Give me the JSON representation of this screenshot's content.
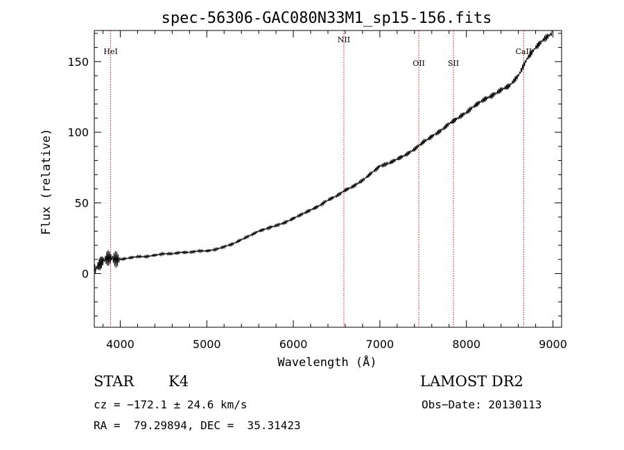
{
  "chart_data": {
    "type": "line",
    "title": "spec-56306-GAC080N33M1_sp15-156.fits",
    "xlabel": "Wavelength (Å)",
    "ylabel": "Flux (relative)",
    "xlim": [
      3700,
      9100
    ],
    "ylim": [
      -38,
      172
    ],
    "x_ticks": [
      4000,
      5000,
      6000,
      7000,
      8000,
      9000
    ],
    "y_ticks": [
      0,
      50,
      100,
      150
    ],
    "grid": false,
    "series": [
      {
        "x": [
          3700,
          3750,
          3800,
          3850,
          3900,
          3950,
          4000,
          4100,
          4200,
          4300,
          4400,
          4500,
          4600,
          4700,
          4800,
          4900,
          5000,
          5100,
          5200,
          5300,
          5400,
          5500,
          5600,
          5700,
          5800,
          5900,
          6000,
          6100,
          6200,
          6300,
          6400,
          6500,
          6600,
          6700,
          6800,
          6900,
          7000,
          7100,
          7200,
          7300,
          7400,
          7500,
          7600,
          7700,
          7800,
          7900,
          8000,
          8100,
          8200,
          8300,
          8400,
          8500,
          8600,
          8700,
          8800,
          8900,
          8990
        ],
        "values": [
          2,
          6,
          9,
          11,
          11,
          10,
          10,
          11,
          12,
          12,
          13,
          14,
          14,
          15,
          15,
          16,
          16,
          17,
          19,
          21,
          24,
          27,
          30,
          32,
          34,
          36,
          39,
          42,
          45,
          48,
          52,
          55,
          59,
          62,
          66,
          71,
          76,
          78,
          81,
          84,
          88,
          93,
          97,
          101,
          106,
          110,
          114,
          119,
          123,
          126,
          130,
          133,
          140,
          152,
          160,
          166,
          170
        ]
      }
    ],
    "spectral_lines": [
      {
        "label": "HeI",
        "x": 3889
      },
      {
        "label": "NII",
        "x": 6584
      },
      {
        "label": "OII",
        "x": 7450
      },
      {
        "label": "SII",
        "x": 7850
      },
      {
        "label": "CaII",
        "x": 8662
      }
    ],
    "line_color": "#000000",
    "marker_color": "#c00000"
  },
  "info": {
    "class_label": "STAR",
    "subclass": "K4",
    "survey": "LAMOST DR2",
    "cz": "cz = −172.1 ± 24.6 km/s",
    "obs_date": "Obs−Date: 20130113",
    "radec": "RA =  79.29894, DEC =  35.31423"
  }
}
